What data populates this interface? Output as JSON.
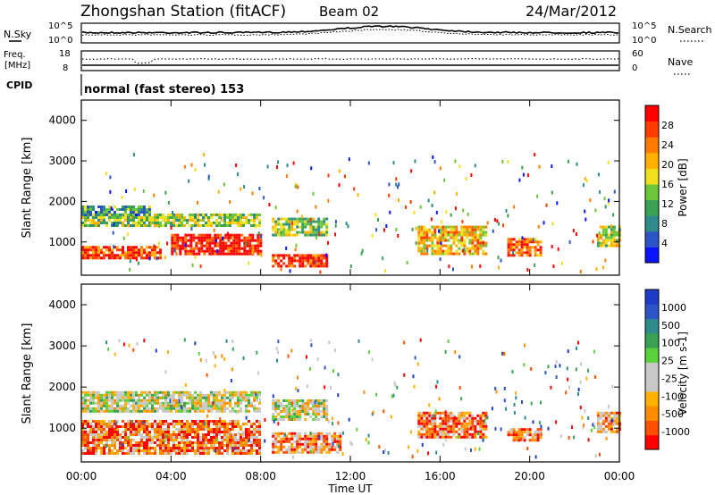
{
  "header": {
    "station": "Zhongshan Station (fitACF)",
    "beam": "Beam 02",
    "date": "24/Mar/2012"
  },
  "noise_panel": {
    "left_label": "N.Sky",
    "left_ticks": [
      "10^5",
      "10^0"
    ],
    "right_label": "N.Search",
    "right_ticks": [
      "10^5",
      "10^0"
    ]
  },
  "freq_panel": {
    "label_line1": "Freq.",
    "label_line2": "[MHz]",
    "left_ticks": [
      "18",
      "8"
    ],
    "right_label": "Nave",
    "right_ticks": [
      "60",
      "0"
    ]
  },
  "cpid_panel": {
    "label": "CPID",
    "text": "normal (fast stereo) 153"
  },
  "x_axis": {
    "label": "Time UT",
    "ticks": [
      "00:00",
      "04:00",
      "08:00",
      "12:00",
      "16:00",
      "20:00",
      "00:00"
    ]
  },
  "chart_data": [
    {
      "type": "heatmap",
      "name": "power-panel",
      "xlabel": "Time UT",
      "ylabel": "Slant Range [km]",
      "xlim": [
        0,
        24
      ],
      "ylim": [
        180,
        4500
      ],
      "y_ticks": [
        1000,
        2000,
        3000,
        4000
      ],
      "colorbar": {
        "label": "Power [dB]",
        "ticks": [
          "4",
          "8",
          "12",
          "16",
          "20",
          "24",
          "28"
        ],
        "colors": [
          "#0a14ff",
          "#2e55c8",
          "#2f8a8c",
          "#3aa054",
          "#6cc63a",
          "#f0e020",
          "#ffb000",
          "#ff7a00",
          "#ff3c00",
          "#ff0000"
        ]
      },
      "echo_regions": [
        {
          "t0": 0.0,
          "t1": 3.5,
          "r0": 600,
          "r1": 900,
          "level": 0.85
        },
        {
          "t0": 4.0,
          "t1": 8.0,
          "r0": 700,
          "r1": 1200,
          "level": 0.95
        },
        {
          "t0": 0.0,
          "t1": 8.0,
          "r0": 1400,
          "r1": 1700,
          "level": 0.45
        },
        {
          "t0": 0.0,
          "t1": 3.0,
          "r0": 1700,
          "r1": 1900,
          "level": 0.3
        },
        {
          "t0": 8.5,
          "t1": 11.0,
          "r0": 400,
          "r1": 700,
          "level": 0.9
        },
        {
          "t0": 8.5,
          "t1": 11.0,
          "r0": 1200,
          "r1": 1600,
          "level": 0.45
        },
        {
          "t0": 15.0,
          "t1": 18.0,
          "r0": 700,
          "r1": 1400,
          "level": 0.65
        },
        {
          "t0": 19.0,
          "t1": 20.5,
          "r0": 700,
          "r1": 1100,
          "level": 0.8
        },
        {
          "t0": 23.0,
          "t1": 24.0,
          "r0": 900,
          "r1": 1400,
          "level": 0.5
        }
      ]
    },
    {
      "type": "heatmap",
      "name": "velocity-panel",
      "xlabel": "Time UT",
      "ylabel": "Slant Range [km]",
      "xlim": [
        0,
        24
      ],
      "ylim": [
        180,
        4500
      ],
      "y_ticks": [
        1000,
        2000,
        3000,
        4000
      ],
      "colorbar": {
        "label": "Velocity [m s-1]",
        "ticks": [
          "1000",
          "500",
          "100",
          "25",
          "-25",
          "-100",
          "-500",
          "-1000"
        ],
        "colors": [
          "#1e3cc8",
          "#2e55c8",
          "#2f8a8c",
          "#3aa054",
          "#5ad23c",
          "#c8c8c8",
          "#c8c8c8",
          "#ffb000",
          "#ff8c00",
          "#ff5000",
          "#ff0000"
        ]
      },
      "echo_regions": [
        {
          "t0": 0.0,
          "t1": 8.0,
          "r0": 400,
          "r1": 1200,
          "level": 0.8
        },
        {
          "t0": 0.0,
          "t1": 8.0,
          "r0": 1400,
          "r1": 1900,
          "level": 0.55
        },
        {
          "t0": 8.5,
          "t1": 11.0,
          "r0": 1200,
          "r1": 1700,
          "level": 0.55
        },
        {
          "t0": 8.5,
          "t1": 11.5,
          "r0": 400,
          "r1": 900,
          "level": 0.75
        },
        {
          "t0": 15.0,
          "t1": 18.0,
          "r0": 800,
          "r1": 1400,
          "level": 0.8
        },
        {
          "t0": 19.0,
          "t1": 20.5,
          "r0": 700,
          "r1": 1000,
          "level": 0.8
        },
        {
          "t0": 23.0,
          "t1": 24.0,
          "r0": 900,
          "r1": 1400,
          "level": 0.7
        }
      ]
    }
  ]
}
